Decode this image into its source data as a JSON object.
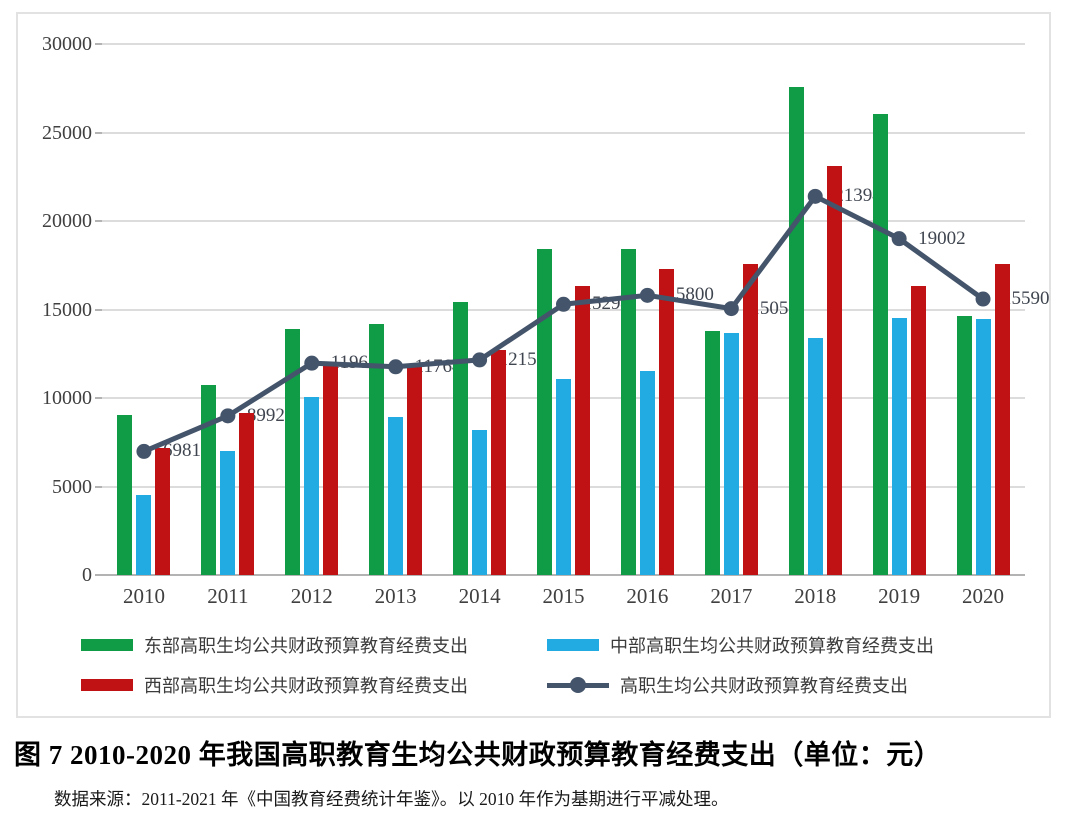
{
  "figure": {
    "title": "图 7  2010-2020 年我国高职教育生均公共财政预算教育经费支出（单位：元）",
    "source": "数据来源：2011-2021 年《中国教育经费统计年鉴》。以 2010 年作为基期进行平减处理。"
  },
  "colors": {
    "east_bar": "#109c46",
    "central_bar": "#22abe2",
    "west_bar": "#c01114",
    "line": "#44546a",
    "gridline": "#dcdcdc",
    "axis_line": "#b3b3b3",
    "axis_text": "#404040",
    "frame_border": "#e2e2e2"
  },
  "chart_data": {
    "type": "bar",
    "subtype": "grouped-bars-with-line-overlay",
    "title": "",
    "xlabel": "",
    "ylabel": "",
    "categories": [
      "2010",
      "2011",
      "2012",
      "2013",
      "2014",
      "2015",
      "2016",
      "2017",
      "2018",
      "2019",
      "2020"
    ],
    "ylim": [
      0,
      30000
    ],
    "yticks": [
      0,
      5000,
      10000,
      15000,
      20000,
      25000,
      30000
    ],
    "grid": true,
    "legend_position": "bottom",
    "series": [
      {
        "name": "东部高职生均公共财政预算教育经费支出",
        "type": "bar",
        "color": "#109c46",
        "values": [
          9050,
          10750,
          13900,
          14200,
          15450,
          18400,
          18400,
          13800,
          27550,
          26050,
          14650
        ],
        "values_estimated": true
      },
      {
        "name": "中部高职生均公共财政预算教育经费支出",
        "type": "bar",
        "color": "#22abe2",
        "values": [
          4500,
          7000,
          10050,
          8950,
          8200,
          11050,
          11550,
          13650,
          13400,
          14500,
          14450
        ],
        "values_estimated": true
      },
      {
        "name": "西部高职生均公共财政预算教育经费支出",
        "type": "bar",
        "color": "#c01114",
        "values": [
          7150,
          9150,
          11850,
          11950,
          12700,
          16350,
          17300,
          17550,
          23100,
          16350,
          17550
        ],
        "values_estimated": true
      },
      {
        "name": "高职生均公共财政预算教育经费支出",
        "type": "line",
        "color": "#44546a",
        "values": [
          6981,
          8992,
          11968,
          11764,
          12151,
          15294,
          15800,
          15051,
          21394,
          19002,
          15590
        ],
        "data_labels": [
          6981,
          8992,
          11968,
          11764,
          12151,
          15294,
          15800,
          15051,
          21394,
          19002,
          15590
        ]
      }
    ]
  }
}
